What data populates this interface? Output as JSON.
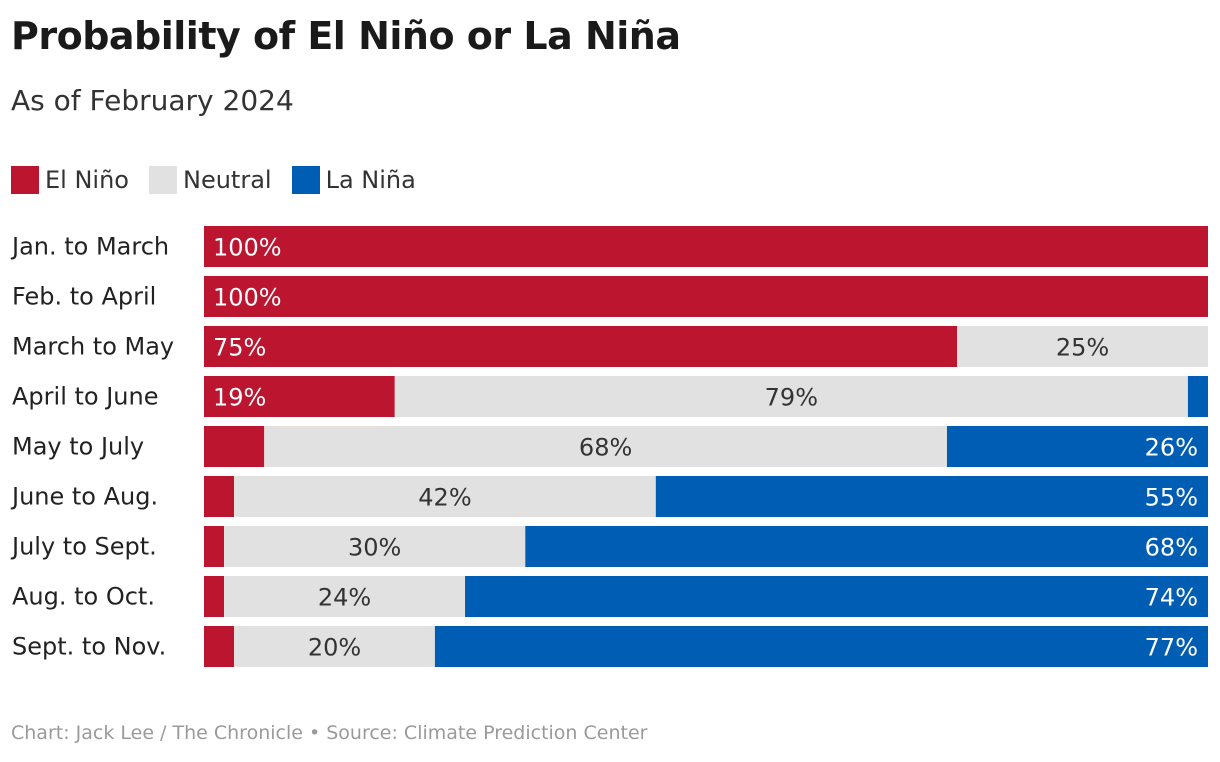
{
  "colors": {
    "el_nino": "#bc1530",
    "neutral": "#e1e1e1",
    "la_nina": "#005db4",
    "label_on_dark": "#ffffff",
    "label_on_light": "#333333"
  },
  "footer": {
    "text": "Chart: Jack Lee / The Chronicle • Source: Climate Prediction Center"
  },
  "chart_data": {
    "type": "bar",
    "orientation": "horizontal",
    "stacked": true,
    "title": "Probability of El Niño or La Niña",
    "subtitle": "As of February 2024",
    "xlim": [
      0,
      100
    ],
    "grid": false,
    "legend_position": "top-left",
    "categories": [
      "Jan. to March",
      "Feb. to April",
      "March to May",
      "April to June",
      "May to July",
      "June to Aug.",
      "July to Sept.",
      "Aug. to Oct.",
      "Sept. to Nov."
    ],
    "series": [
      {
        "name": "El Niño",
        "color": "#bc1530",
        "values": [
          100,
          100,
          75,
          19,
          6,
          3,
          2,
          2,
          3
        ],
        "labels": [
          "100%",
          "100%",
          "75%",
          "19%",
          "",
          "",
          "",
          "",
          ""
        ]
      },
      {
        "name": "Neutral",
        "color": "#e1e1e1",
        "values": [
          0,
          0,
          25,
          79,
          68,
          42,
          30,
          24,
          20
        ],
        "labels": [
          "",
          "",
          "25%",
          "79%",
          "68%",
          "42%",
          "30%",
          "24%",
          "20%"
        ]
      },
      {
        "name": "La Niña",
        "color": "#005db4",
        "values": [
          0,
          0,
          0,
          2,
          26,
          55,
          68,
          74,
          77
        ],
        "labels": [
          "",
          "",
          "",
          "",
          "26%",
          "55%",
          "68%",
          "74%",
          "77%"
        ]
      }
    ]
  }
}
